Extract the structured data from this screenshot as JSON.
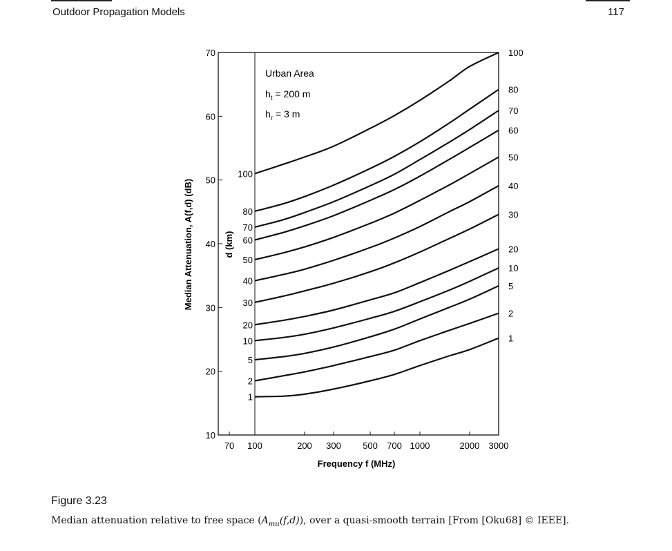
{
  "page": {
    "running_head": "Outdoor Propagation Models",
    "page_number": "117"
  },
  "figure": {
    "label": "Figure 3.23",
    "caption_before": "Median attenuation relative to free space (",
    "caption_math_a": "A",
    "caption_math_sub": "mu",
    "caption_math_args": "(f,d)",
    "caption_after": "), over a quasi-smooth terrain [From [Oku68] © IEEE]."
  },
  "chart_data": {
    "type": "line",
    "xlabel": "Frequency  f  (MHz)",
    "ylabel": "Median Attenuation, A(f,d) (dB)",
    "xscale": "log",
    "xlim": [
      60,
      3000
    ],
    "ylim": [
      10,
      70
    ],
    "x_ticks": [
      70,
      100,
      200,
      300,
      500,
      700,
      1000,
      2000,
      3000
    ],
    "x_tick_labels": [
      "70",
      "100",
      "200",
      "300",
      "500",
      "700",
      "1000",
      "2000",
      "3000"
    ],
    "y_ticks": [
      10,
      20,
      30,
      40,
      50,
      60,
      70
    ],
    "y_tick_labels": [
      "10",
      "20",
      "30",
      "40",
      "50",
      "60",
      "70"
    ],
    "annotations": {
      "area": "Urban Area",
      "ht_sym": "h",
      "ht_sub": "t",
      "ht_val": " = 200 m",
      "hr_sym": "h",
      "hr_sub": "r",
      "hr_val": " = 3 m",
      "d_axis_label": "d (km)"
    },
    "x": [
      100,
      150,
      200,
      300,
      500,
      700,
      1000,
      1500,
      2000,
      3000
    ],
    "series": [
      {
        "name": "1",
        "values": [
          16.0,
          16.1,
          16.4,
          17.2,
          18.5,
          19.5,
          20.9,
          22.4,
          23.4,
          25.2
        ]
      },
      {
        "name": "2",
        "values": [
          18.5,
          19.3,
          19.9,
          20.9,
          22.3,
          23.3,
          24.8,
          26.4,
          27.5,
          29.1
        ]
      },
      {
        "name": "5",
        "values": [
          21.8,
          22.3,
          22.8,
          23.8,
          25.4,
          26.6,
          28.2,
          30.0,
          31.3,
          33.4
        ]
      },
      {
        "name": "10",
        "values": [
          24.8,
          25.3,
          25.8,
          26.8,
          28.3,
          29.4,
          30.9,
          32.7,
          34.1,
          36.2
        ]
      },
      {
        "name": "20",
        "values": [
          27.3,
          28.0,
          28.6,
          29.6,
          31.2,
          32.3,
          33.9,
          35.8,
          37.2,
          39.2
        ]
      },
      {
        "name": "30",
        "values": [
          30.8,
          31.8,
          32.6,
          33.8,
          35.6,
          37.0,
          38.7,
          40.8,
          42.3,
          44.6
        ]
      },
      {
        "name": "40",
        "values": [
          34.2,
          35.2,
          36.0,
          37.4,
          39.4,
          40.9,
          42.7,
          45.0,
          46.6,
          49.1
        ]
      },
      {
        "name": "50",
        "values": [
          37.5,
          38.6,
          39.5,
          41.0,
          43.2,
          44.8,
          46.8,
          49.2,
          51.0,
          53.6
        ]
      },
      {
        "name": "60",
        "values": [
          40.6,
          41.8,
          42.8,
          44.4,
          46.8,
          48.5,
          50.6,
          53.2,
          55.1,
          57.8
        ]
      },
      {
        "name": "70",
        "values": [
          42.6,
          43.8,
          44.9,
          46.6,
          49.1,
          50.9,
          53.2,
          55.9,
          57.9,
          60.9
        ]
      },
      {
        "name": "80",
        "values": [
          45.1,
          46.3,
          47.4,
          49.2,
          51.8,
          53.7,
          56.0,
          58.9,
          61.1,
          64.2
        ]
      },
      {
        "name": "100",
        "values": [
          51.0,
          52.5,
          53.6,
          55.3,
          58.1,
          60.1,
          62.5,
          65.5,
          67.8,
          70.0
        ]
      }
    ]
  }
}
